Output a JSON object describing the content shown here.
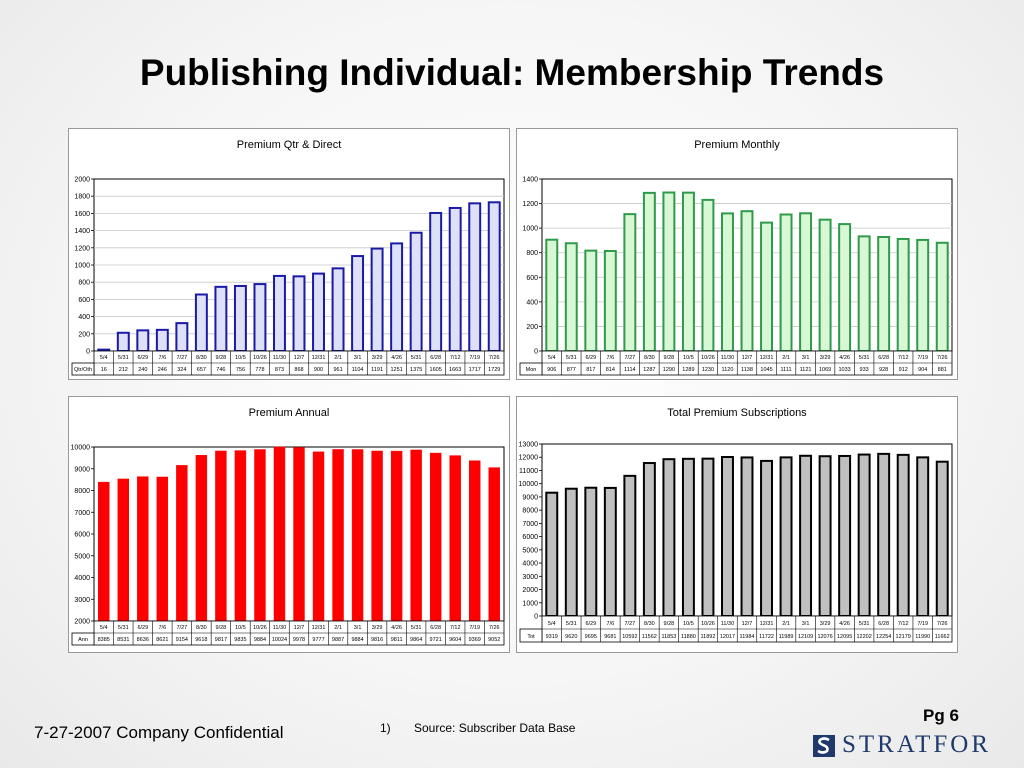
{
  "slide": {
    "title": "Publishing Individual:  Membership Trends",
    "footer_left": "7-27-2007  Company Confidential",
    "footnote_number": "1)",
    "footnote_text": "Source: Subscriber Data Base",
    "page_label": "Pg 6",
    "logo_text": "STRATFOR",
    "logo_color": "#1f3a6b"
  },
  "chart_data": [
    {
      "type": "bar",
      "title": "Premium Qtr & Direct",
      "row_label": "Qtr/Oth",
      "categories": [
        "5/4",
        "5/31",
        "6/29",
        "7/6",
        "7/27",
        "8/30",
        "9/28",
        "10/5",
        "10/26",
        "11/30",
        "12/7",
        "12/31",
        "2/1",
        "3/1",
        "3/29",
        "4/26",
        "5/31",
        "6/28",
        "7/12",
        "7/19",
        "7/26"
      ],
      "values": [
        16,
        212,
        240,
        246,
        324,
        657,
        746,
        756,
        778,
        873,
        868,
        900,
        961,
        1104,
        1191,
        1251,
        1375,
        1605,
        1663,
        1717,
        1729
      ],
      "ylim": [
        0,
        2000
      ],
      "yticks": [
        "0",
        "200",
        "400",
        "600",
        "800",
        "1000",
        "1200",
        "1400",
        "1600",
        "1800",
        "2000"
      ],
      "bar_fill": "#dde0f7",
      "bar_stroke": "#1a1aa6",
      "grid": true
    },
    {
      "type": "bar",
      "title": "Premium Monthly",
      "row_label": "Mon",
      "categories": [
        "5/4",
        "5/31",
        "6/29",
        "7/6",
        "7/27",
        "8/30",
        "9/28",
        "10/5",
        "10/26",
        "11/30",
        "12/7",
        "12/31",
        "2/1",
        "3/1",
        "3/29",
        "4/26",
        "5/31",
        "6/28",
        "7/12",
        "7/19",
        "7/26"
      ],
      "values": [
        906,
        877,
        817,
        814,
        1114,
        1287,
        1290,
        1289,
        1230,
        1120,
        1138,
        1045,
        1111,
        1121,
        1069,
        1033,
        933,
        928,
        912,
        904,
        881
      ],
      "ylim": [
        0,
        1400
      ],
      "yticks": [
        "0",
        "200",
        "400",
        "600",
        "800",
        "1000",
        "1200",
        "1400"
      ],
      "bar_fill": "#d7f7d5",
      "bar_stroke": "#2e9a4a",
      "grid": true
    },
    {
      "type": "bar",
      "title": "Premium Annual",
      "row_label": "Ann",
      "categories": [
        "5/4",
        "5/31",
        "6/29",
        "7/6",
        "7/27",
        "8/30",
        "9/28",
        "10/5",
        "10/26",
        "11/30",
        "12/7",
        "12/31",
        "2/1",
        "3/1",
        "3/29",
        "4/26",
        "5/31",
        "6/28",
        "7/12",
        "7/19",
        "7/26"
      ],
      "values": [
        8385,
        8531,
        8636,
        8621,
        9154,
        9618,
        9817,
        9835,
        9884,
        10024,
        9978,
        9777,
        9887,
        9884,
        9816,
        9811,
        9864,
        9721,
        9604,
        9369,
        9052
      ],
      "ylim": [
        2000,
        10000
      ],
      "yticks": [
        "2000",
        "3000",
        "4000",
        "5000",
        "6000",
        "7000",
        "8000",
        "9000",
        "10000"
      ],
      "bar_fill": "#ff0000",
      "bar_stroke": "#ff0000",
      "grid": false
    },
    {
      "type": "bar",
      "title": "Total Premium Subscriptions",
      "row_label": "Tot",
      "categories": [
        "5/4",
        "5/31",
        "6/29",
        "7/6",
        "7/27",
        "8/30",
        "9/28",
        "10/5",
        "10/26",
        "11/30",
        "12/7",
        "12/31",
        "2/1",
        "3/1",
        "3/29",
        "4/26",
        "5/31",
        "6/28",
        "7/12",
        "7/19",
        "7/26"
      ],
      "values": [
        9319,
        9620,
        9695,
        9681,
        10592,
        11562,
        11853,
        11880,
        11892,
        12017,
        11984,
        11722,
        11989,
        12109,
        12076,
        12095,
        12202,
        12254,
        12179,
        11990,
        11662
      ],
      "ylim": [
        0,
        13000
      ],
      "yticks": [
        "0",
        "1000",
        "2000",
        "3000",
        "4000",
        "5000",
        "6000",
        "7000",
        "8000",
        "9000",
        "10000",
        "11000",
        "12000",
        "13000"
      ],
      "bar_fill": "#c0c0c0",
      "bar_stroke": "#000000",
      "grid": false
    }
  ]
}
